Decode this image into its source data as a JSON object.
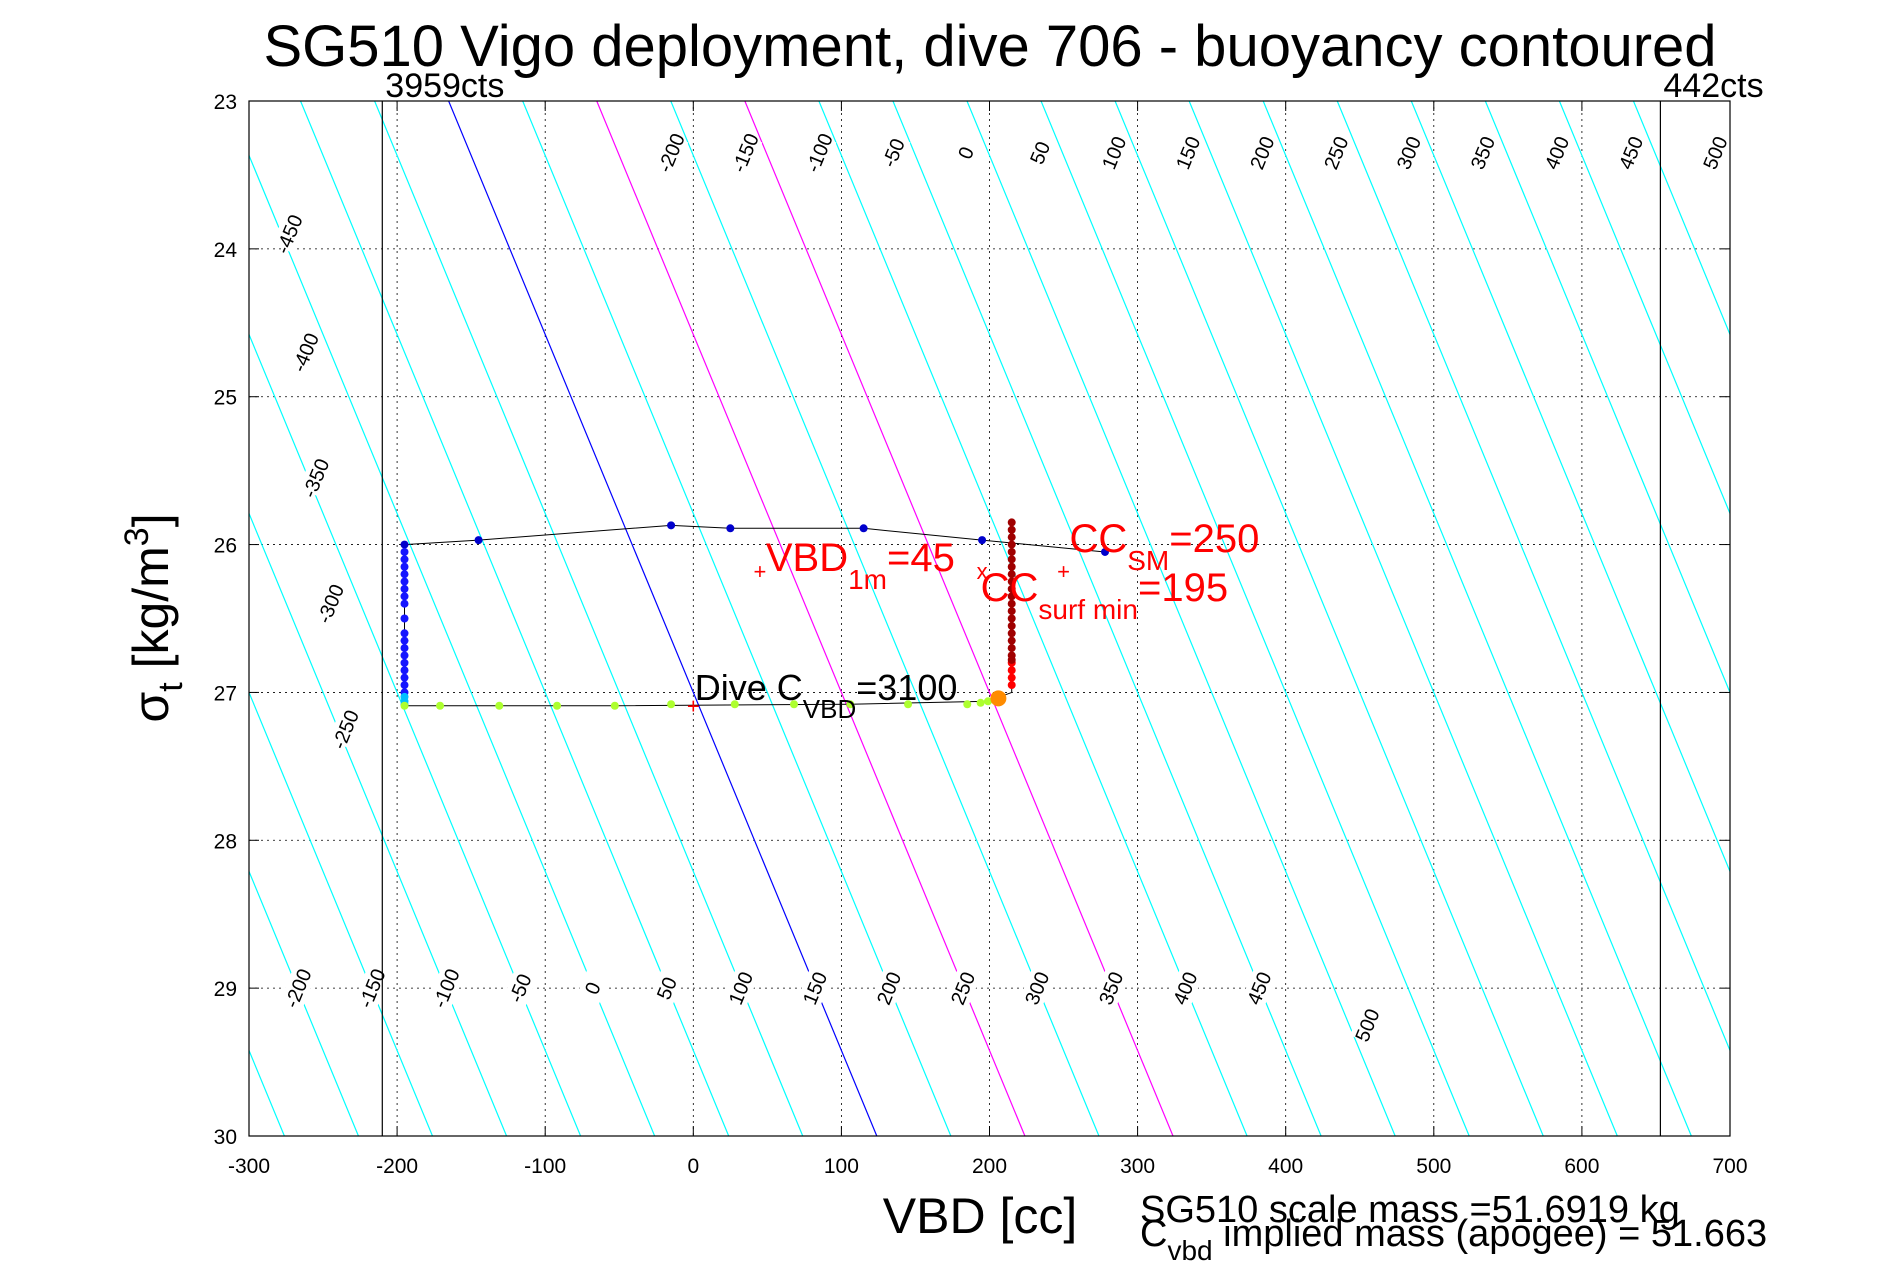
{
  "title": "SG510 Vigo deployment, dive 706 - buoyancy contoured",
  "chart_data": {
    "type": "scatter",
    "title": "SG510 Vigo deployment, dive 706 - buoyancy contoured",
    "xlabel": "VBD [cc]",
    "ylabel": {
      "base": "σ",
      "sub": "t",
      "rest": " [kg/m",
      "sup": "3",
      "close": "]"
    },
    "xlim": [
      -300,
      700
    ],
    "ylim": [
      23,
      30
    ],
    "y_reversed": true,
    "xticks": [
      "-300",
      "-200",
      "-100",
      "0",
      "100",
      "200",
      "300",
      "400",
      "500",
      "600",
      "700"
    ],
    "yticks": [
      "23",
      "24",
      "25",
      "26",
      "27",
      "28",
      "29",
      "30"
    ],
    "grid": "dotted",
    "limit_lines": [
      {
        "x": -210,
        "label": "3959cts"
      },
      {
        "x": 653,
        "label": "442cts"
      }
    ],
    "contour_slope_cc_per_sigma": 41.3,
    "contours": {
      "levels": [
        -450,
        -400,
        -350,
        -300,
        -250,
        -200,
        -150,
        -100,
        -50,
        0,
        50,
        100,
        150,
        200,
        250,
        300,
        350,
        400,
        450,
        500
      ],
      "extra_lines": [
        -700,
        -650,
        -600,
        -550,
        -500,
        550,
        600,
        650,
        700,
        750,
        800
      ],
      "zero_color": "#0000ff",
      "highlight_levels": [
        100,
        200
      ],
      "highlight_color": "#ff00ff",
      "default_color": "#00ffff",
      "labels_top": {
        "y": 23.35,
        "values": [
          "-200",
          "-150",
          "-100",
          "-50",
          "0",
          "50",
          "100",
          "150",
          "200",
          "250",
          "300",
          "350",
          "400",
          "450",
          "500"
        ],
        "x": [
          -15,
          35,
          85,
          135,
          184,
          234,
          284,
          334,
          384,
          434,
          483,
          533,
          583,
          633,
          690
        ]
      },
      "labels_left": [
        {
          "value": "-450",
          "x": -273,
          "y": 23.9
        },
        {
          "value": "-400",
          "x": -262,
          "y": 24.7
        },
        {
          "value": "-350",
          "x": -255,
          "y": 25.55
        },
        {
          "value": "-300",
          "x": -245,
          "y": 26.4
        },
        {
          "value": "-250",
          "x": -235,
          "y": 27.25
        }
      ],
      "labels_bottom": {
        "y": 29.0,
        "values": [
          "-200",
          "-150",
          "-100",
          "-50",
          "0",
          "50",
          "100",
          "150",
          "200",
          "250",
          "300",
          "350",
          "400",
          "450",
          "500"
        ],
        "x": [
          -267,
          -217,
          -167,
          -117,
          -68,
          -18,
          32,
          82,
          132,
          182,
          232,
          282,
          332,
          382,
          455
        ]
      },
      "label_500_bottom_y": 29.25
    },
    "series": [
      {
        "color": "#0000cc",
        "x": [
          -195,
          -145,
          -15,
          25,
          115,
          195,
          278
        ],
        "y": [
          26.0,
          25.97,
          25.87,
          25.89,
          25.89,
          25.97,
          26.05
        ]
      },
      {
        "color": "#1515ff",
        "x": [
          -195,
          -195,
          -195,
          -195,
          -195,
          -195,
          -195,
          -195,
          -195,
          -195,
          -195,
          -195,
          -195,
          -195,
          -195,
          -195,
          -195,
          -195
        ],
        "y": [
          26.05,
          26.1,
          26.15,
          26.2,
          26.25,
          26.3,
          26.35,
          26.4,
          26.5,
          26.6,
          26.65,
          26.7,
          26.75,
          26.8,
          26.85,
          26.9,
          26.95,
          27.0
        ]
      },
      {
        "color": "#00bfff",
        "x": [
          -195,
          -195,
          -195
        ],
        "y": [
          27.03,
          27.06,
          27.08
        ]
      },
      {
        "color": "#adff2f",
        "x": [
          -195,
          -171,
          -131,
          -92,
          -53,
          -15,
          28,
          68,
          106,
          145,
          185,
          194,
          199
        ],
        "y": [
          27.09,
          27.09,
          27.09,
          27.09,
          27.09,
          27.08,
          27.08,
          27.08,
          27.08,
          27.08,
          27.08,
          27.07,
          27.06
        ]
      },
      {
        "color": "#ff8c00",
        "x": [
          205,
          207
        ],
        "y": [
          27.04,
          27.02
        ]
      },
      {
        "color": "#ff0000",
        "x": [
          215,
          215,
          215,
          215
        ],
        "y": [
          26.95,
          26.9,
          26.85,
          26.8
        ]
      },
      {
        "color": "#a00000",
        "x": [
          215,
          215,
          215,
          215,
          215,
          215,
          215,
          215,
          215,
          215,
          215,
          215,
          215,
          215,
          215,
          215,
          215,
          215,
          215,
          215
        ],
        "y": [
          25.85,
          25.9,
          25.95,
          26.0,
          26.05,
          26.1,
          26.15,
          26.2,
          26.25,
          26.3,
          26.35,
          26.4,
          26.45,
          26.5,
          26.55,
          26.6,
          26.65,
          26.7,
          26.75,
          26.78
        ]
      }
    ],
    "trace_order": [
      {
        "x": -195,
        "y": 26.0
      },
      {
        "x": -145,
        "y": 25.97
      },
      {
        "x": -15,
        "y": 25.87
      },
      {
        "x": 25,
        "y": 25.89
      },
      {
        "x": 115,
        "y": 25.89
      },
      {
        "x": 195,
        "y": 25.97
      },
      {
        "x": 278,
        "y": 26.05
      }
    ],
    "trace_bottom": [
      {
        "x": -195,
        "y": 27.09
      },
      {
        "x": -53,
        "y": 27.09
      },
      {
        "x": 106,
        "y": 27.08
      },
      {
        "x": 199,
        "y": 27.06
      },
      {
        "x": 215,
        "y": 27.0
      }
    ],
    "markers": [
      {
        "x": 45,
        "y": 26.18,
        "color": "#ff0000",
        "symbol": "+"
      },
      {
        "x": 250,
        "y": 26.18,
        "color": "#ff0000",
        "symbol": "+"
      },
      {
        "x": 195,
        "y": 26.18,
        "color": "#ff0000",
        "symbol": "x"
      },
      {
        "x": 0,
        "y": 27.09,
        "color": "#ff0000",
        "symbol": "+"
      }
    ],
    "annotations": [
      {
        "base": "VBD",
        "sub": "1m",
        "rest": "=45",
        "color": "#ff0000",
        "x": 49,
        "y": 26.18
      },
      {
        "base": "CC",
        "sub": "SM",
        "rest": "=250",
        "color": "#ff0000",
        "x": 254,
        "y": 26.05
      },
      {
        "base": "CC",
        "sub": "surf min",
        "rest": "=195",
        "color": "#ff0000",
        "x": 194,
        "y": 26.38
      },
      {
        "base": "Dive C",
        "sub": "VBD",
        "rest": "=3100",
        "color": "#000000",
        "x": 1,
        "y": 27.05
      }
    ],
    "footer": {
      "line1": "SG510 scale mass =51.6919 kg",
      "line2_base": "C",
      "line2_sub": "vbd",
      "line2_rest": " implied mass (apogee) = 51.663"
    }
  }
}
